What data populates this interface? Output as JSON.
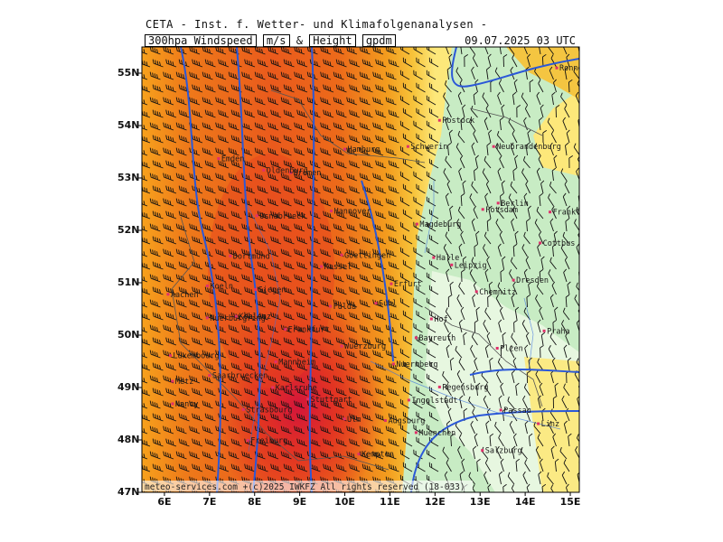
{
  "header": {
    "source": "CETA - Inst. f. Wetter- und Klimafolgenanalysen -",
    "parameter": "300hpa Windspeed",
    "unit1": "m/s",
    "amp": "&",
    "param2": "Height",
    "unit2": "gpdm",
    "valid_time": "09.07.2025 03 UTC"
  },
  "footer": {
    "copyright": "meteo-services.com  +(c)2025 IWKFZ  All rights reserved  (18-033)"
  },
  "axes": {
    "lat_labels": [
      "55N",
      "54N",
      "53N",
      "52N",
      "51N",
      "50N",
      "49N",
      "48N",
      "47N"
    ],
    "lon_labels": [
      "6E",
      "7E",
      "8E",
      "9E",
      "10E",
      "11E",
      "12E",
      "13E",
      "14E",
      "15E"
    ],
    "lat_range": [
      47,
      55.5
    ],
    "lon_range": [
      5.5,
      15.2
    ]
  },
  "colors": {
    "speed_light_yellow": "#fde87a",
    "speed_yellow": "#f7c33a",
    "speed_orange": "#f39c1e",
    "speed_dark_orange": "#ed6b1a",
    "speed_red": "#e43a20",
    "speed_crimson": "#d4163a",
    "low_green": "#c8ecc4",
    "very_low_green": "#e7f7e0",
    "height_contour": "#2b58d8",
    "border": "#505050",
    "city_marker": "#e0306a"
  },
  "cities": [
    {
      "name": "Rostock",
      "lon": 12.1,
      "lat": 54.1
    },
    {
      "name": "Schwerin",
      "lon": 11.4,
      "lat": 53.6
    },
    {
      "name": "Neubrandenburg",
      "lon": 13.3,
      "lat": 53.6
    },
    {
      "name": "Hamburg",
      "lon": 10.0,
      "lat": 53.55
    },
    {
      "name": "Bremen",
      "lon": 8.8,
      "lat": 53.1
    },
    {
      "name": "Oldenburg",
      "lon": 8.2,
      "lat": 53.15
    },
    {
      "name": "Emden",
      "lon": 7.2,
      "lat": 53.37
    },
    {
      "name": "Osnabrueck",
      "lon": 8.05,
      "lat": 52.28
    },
    {
      "name": "Hannover",
      "lon": 9.7,
      "lat": 52.37
    },
    {
      "name": "Berlin",
      "lon": 13.4,
      "lat": 52.52
    },
    {
      "name": "Potsdam",
      "lon": 13.06,
      "lat": 52.4
    },
    {
      "name": "Magdeburg",
      "lon": 11.6,
      "lat": 52.12
    },
    {
      "name": "Frankfurt/O.",
      "lon": 14.55,
      "lat": 52.35
    },
    {
      "name": "Cottbus",
      "lon": 14.33,
      "lat": 51.76
    },
    {
      "name": "Dortmund",
      "lon": 7.46,
      "lat": 51.51
    },
    {
      "name": "Kassel",
      "lon": 9.48,
      "lat": 51.31
    },
    {
      "name": "Goettingen",
      "lon": 9.93,
      "lat": 51.53
    },
    {
      "name": "Halle",
      "lon": 11.97,
      "lat": 51.48
    },
    {
      "name": "Leipzig",
      "lon": 12.37,
      "lat": 51.34
    },
    {
      "name": "Dresden",
      "lon": 13.74,
      "lat": 51.05
    },
    {
      "name": "Chemnitz",
      "lon": 12.92,
      "lat": 50.83
    },
    {
      "name": "Erfurt",
      "lon": 11.03,
      "lat": 50.98
    },
    {
      "name": "Suhl",
      "lon": 10.69,
      "lat": 50.61
    },
    {
      "name": "Fulda",
      "lon": 9.68,
      "lat": 50.55
    },
    {
      "name": "Koeln",
      "lon": 6.95,
      "lat": 50.94
    },
    {
      "name": "Siegen",
      "lon": 8.02,
      "lat": 50.87
    },
    {
      "name": "Aachen",
      "lon": 6.08,
      "lat": 50.78
    },
    {
      "name": "Nuerburgring",
      "lon": 6.95,
      "lat": 50.33
    },
    {
      "name": "Koblenz",
      "lon": 7.59,
      "lat": 50.36
    },
    {
      "name": "Hof",
      "lon": 11.92,
      "lat": 50.31
    },
    {
      "name": "Bayreuth",
      "lon": 11.58,
      "lat": 49.95
    },
    {
      "name": "Praha",
      "lon": 14.42,
      "lat": 50.08
    },
    {
      "name": "Plzen",
      "lon": 13.38,
      "lat": 49.75
    },
    {
      "name": "Frankfurt",
      "lon": 8.68,
      "lat": 50.11
    },
    {
      "name": "Mannheim",
      "lon": 8.47,
      "lat": 49.49
    },
    {
      "name": "Wuerzburg",
      "lon": 9.93,
      "lat": 49.79
    },
    {
      "name": "Nuernberg",
      "lon": 11.08,
      "lat": 49.45
    },
    {
      "name": "Regensburg",
      "lon": 12.1,
      "lat": 49.01
    },
    {
      "name": "Luxembourg",
      "lon": 6.13,
      "lat": 49.61
    },
    {
      "name": "Saarbruecken",
      "lon": 7.0,
      "lat": 49.23
    },
    {
      "name": "Metz",
      "lon": 6.18,
      "lat": 49.12
    },
    {
      "name": "Karlsruhe",
      "lon": 8.4,
      "lat": 49.0
    },
    {
      "name": "Stuttgart",
      "lon": 9.18,
      "lat": 48.78
    },
    {
      "name": "Ingolstadt",
      "lon": 11.42,
      "lat": 48.76
    },
    {
      "name": "Augsburg",
      "lon": 10.9,
      "lat": 48.37
    },
    {
      "name": "Ulm",
      "lon": 9.99,
      "lat": 48.4
    },
    {
      "name": "Muenchen",
      "lon": 11.58,
      "lat": 48.14
    },
    {
      "name": "Passau",
      "lon": 13.46,
      "lat": 48.57
    },
    {
      "name": "Linz",
      "lon": 14.29,
      "lat": 48.31
    },
    {
      "name": "Nancy",
      "lon": 6.18,
      "lat": 48.69
    },
    {
      "name": "Strasbourg",
      "lon": 7.75,
      "lat": 48.58
    },
    {
      "name": "Freiburg",
      "lon": 7.85,
      "lat": 47.99
    },
    {
      "name": "Kempten",
      "lon": 10.31,
      "lat": 47.73
    },
    {
      "name": "Salzburg",
      "lon": 13.05,
      "lat": 47.8
    },
    {
      "name": "Ronne",
      "lon": 14.7,
      "lat": 55.1
    }
  ]
}
